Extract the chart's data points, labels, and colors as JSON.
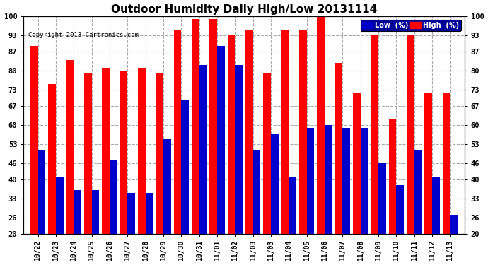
{
  "title": "Outdoor Humidity Daily High/Low 20131114",
  "copyright": "Copyright 2013 Cartronics.com",
  "categories": [
    "10/22",
    "10/23",
    "10/24",
    "10/25",
    "10/26",
    "10/27",
    "10/28",
    "10/29",
    "10/30",
    "10/31",
    "11/01",
    "11/02",
    "11/03",
    "11/03",
    "11/04",
    "11/05",
    "11/06",
    "11/07",
    "11/08",
    "11/09",
    "11/10",
    "11/11",
    "11/12",
    "11/13"
  ],
  "high_values": [
    89,
    75,
    84,
    79,
    81,
    80,
    81,
    79,
    95,
    99,
    99,
    93,
    95,
    79,
    95,
    95,
    100,
    83,
    72,
    93,
    62,
    93,
    72,
    72
  ],
  "low_values": [
    51,
    41,
    36,
    36,
    47,
    35,
    35,
    55,
    69,
    82,
    89,
    82,
    51,
    57,
    41,
    59,
    60,
    59,
    59,
    46,
    38,
    51,
    41,
    27
  ],
  "high_color": "#FF0000",
  "low_color": "#0000CC",
  "bg_color": "#FFFFFF",
  "plot_bg_color": "#FFFFFF",
  "grid_color": "#AAAAAA",
  "ylim": [
    20,
    100
  ],
  "yticks": [
    20,
    26,
    33,
    40,
    46,
    53,
    60,
    67,
    73,
    80,
    87,
    93,
    100
  ],
  "title_fontsize": 11,
  "legend_labels": [
    "Low  (%)",
    "High  (%)"
  ],
  "bar_width": 0.42
}
